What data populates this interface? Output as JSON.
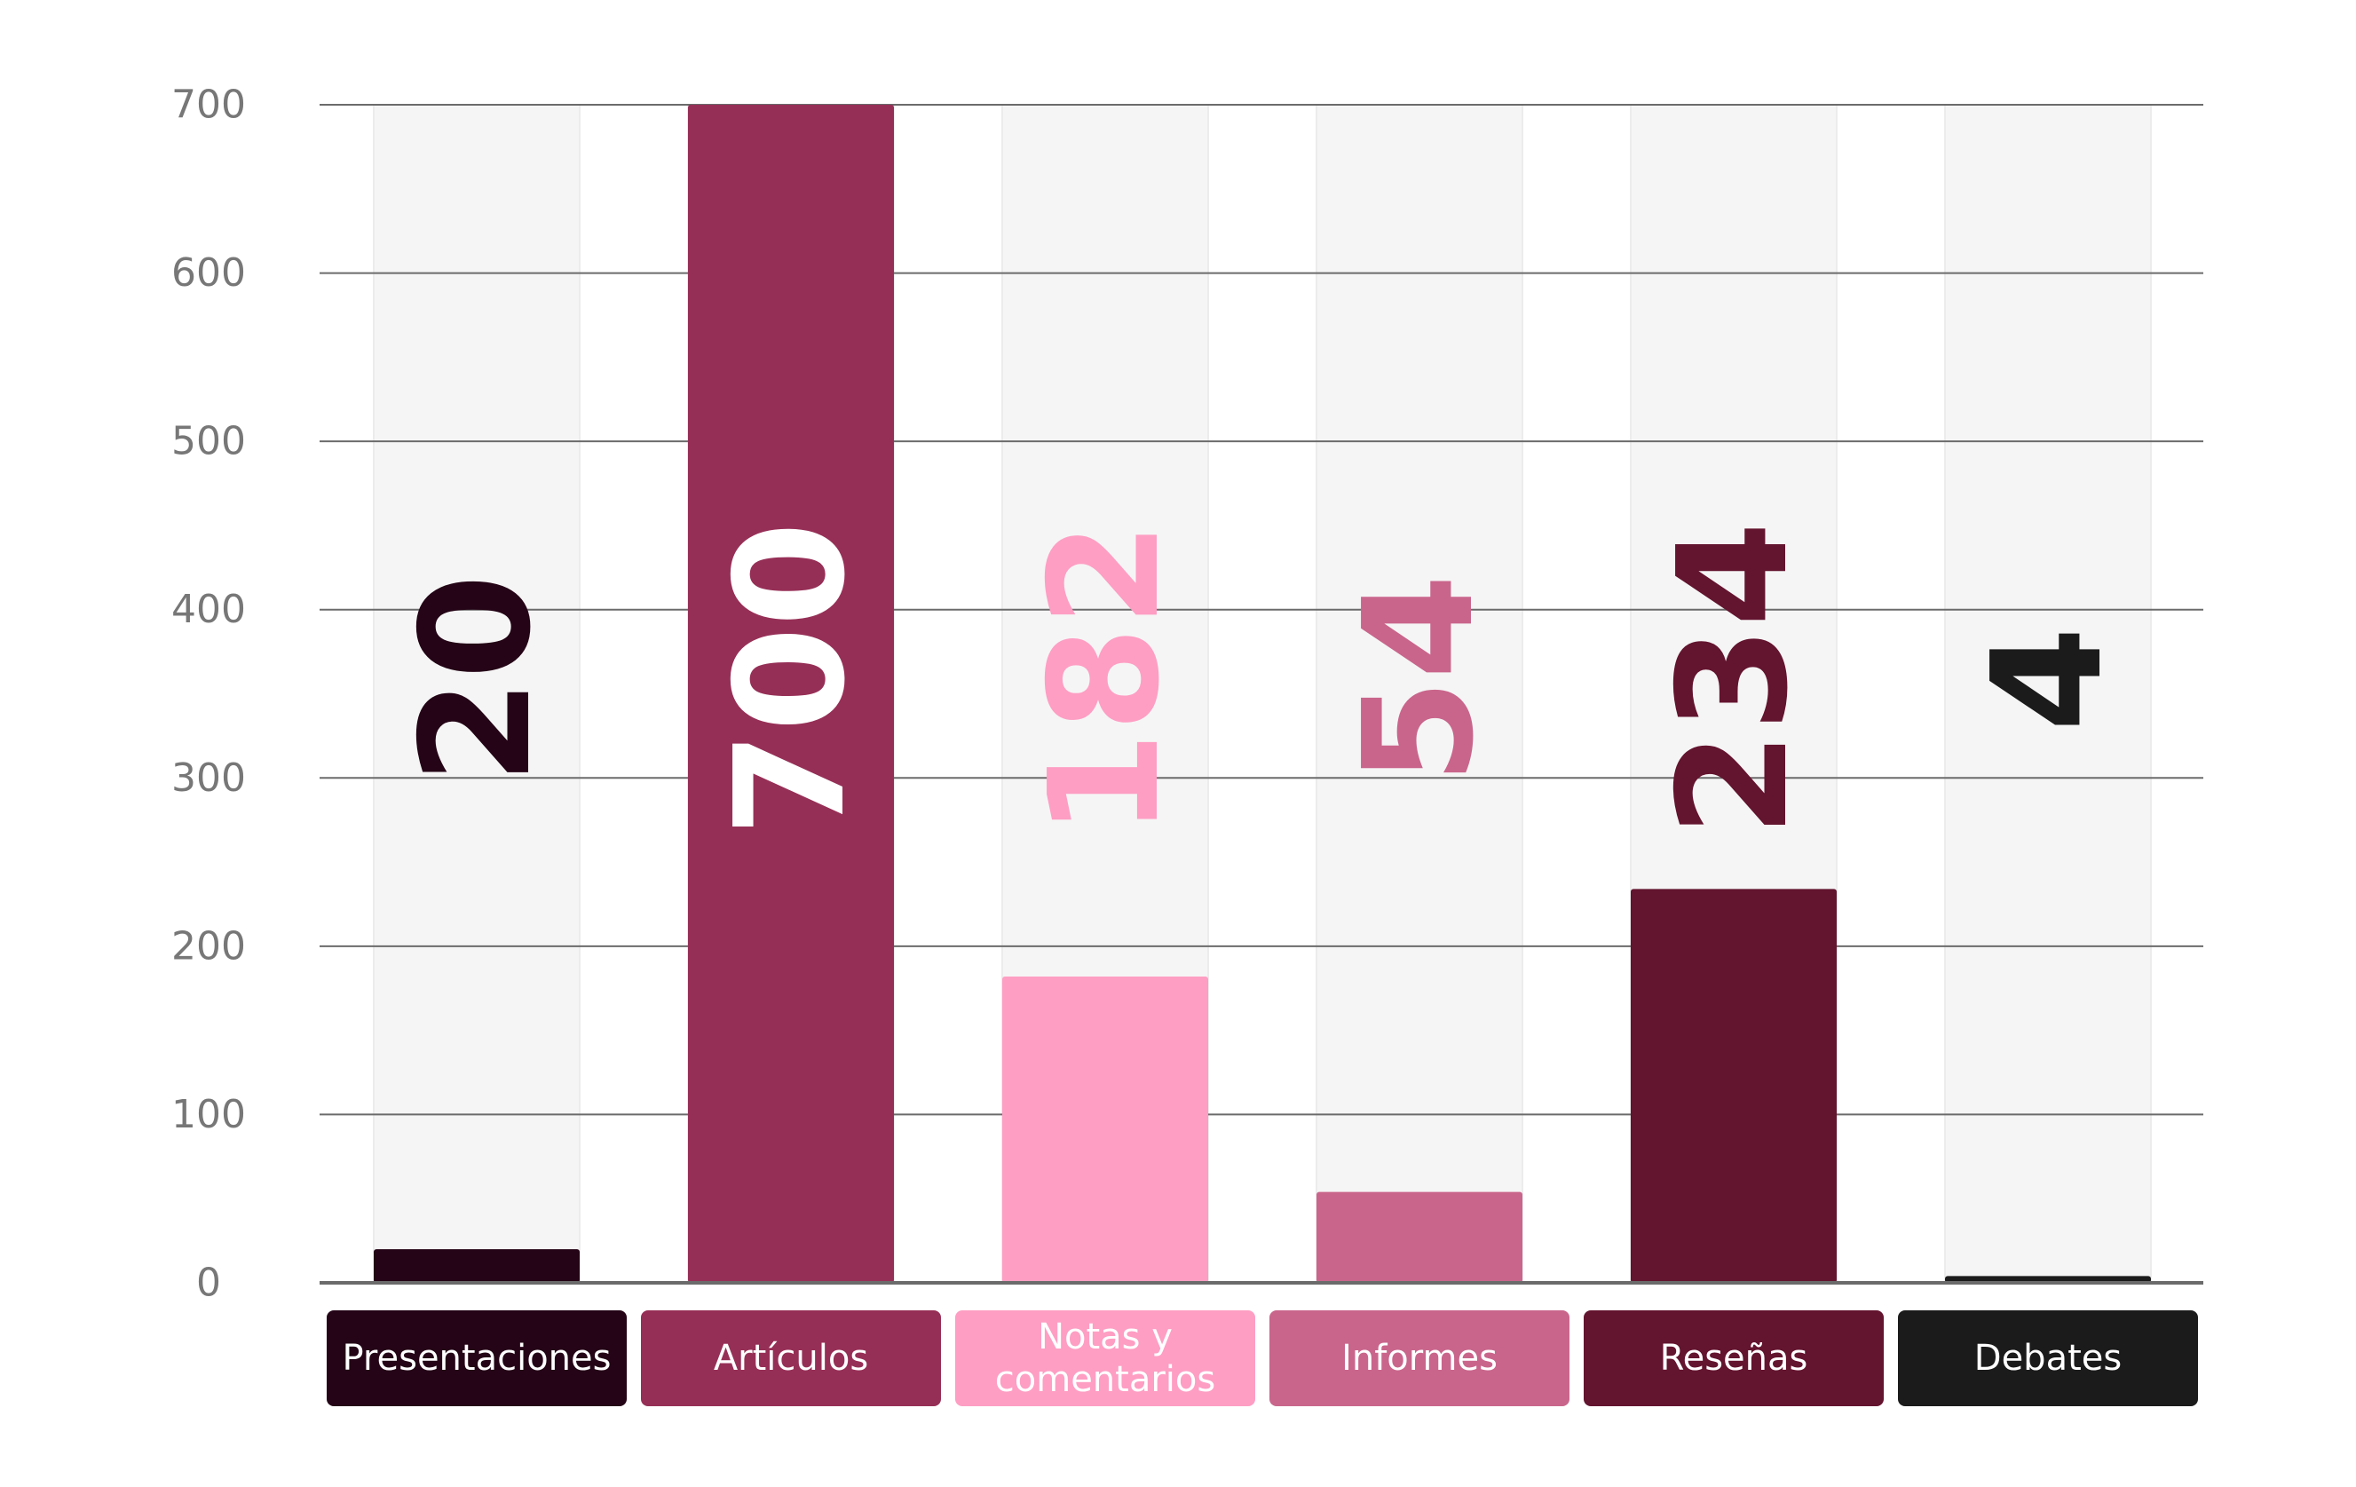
{
  "chart_data": {
    "type": "bar",
    "categories": [
      "Presentaciones",
      "Artículos",
      "Notas y comentarios",
      "Informes",
      "Reseñas",
      "Debates"
    ],
    "category_label_lines": [
      [
        "Presentaciones"
      ],
      [
        "Artículos"
      ],
      [
        "Notas y",
        "comentarios"
      ],
      [
        "Informes"
      ],
      [
        "Reseñas"
      ],
      [
        "Debates"
      ]
    ],
    "values": [
      20,
      700,
      182,
      54,
      234,
      4
    ],
    "value_labels": [
      "20",
      "700",
      "182",
      "54",
      "234",
      "4"
    ],
    "bar_colors": [
      "#240416",
      "#962f56",
      "#fe9ec3",
      "#c9658b",
      "#63142f",
      "#1b1b1b"
    ],
    "label_colors": [
      "#240416",
      "#ffffff",
      "#fe9ec3",
      "#c9658b",
      "#63142f",
      "#1b1b1b"
    ],
    "background_track_color": "#f5f5f5",
    "ylim": [
      0,
      700
    ],
    "yticks": [
      0,
      100,
      200,
      300,
      400,
      500,
      600,
      700
    ],
    "grid": true,
    "title": "",
    "xlabel": "",
    "ylabel": ""
  }
}
